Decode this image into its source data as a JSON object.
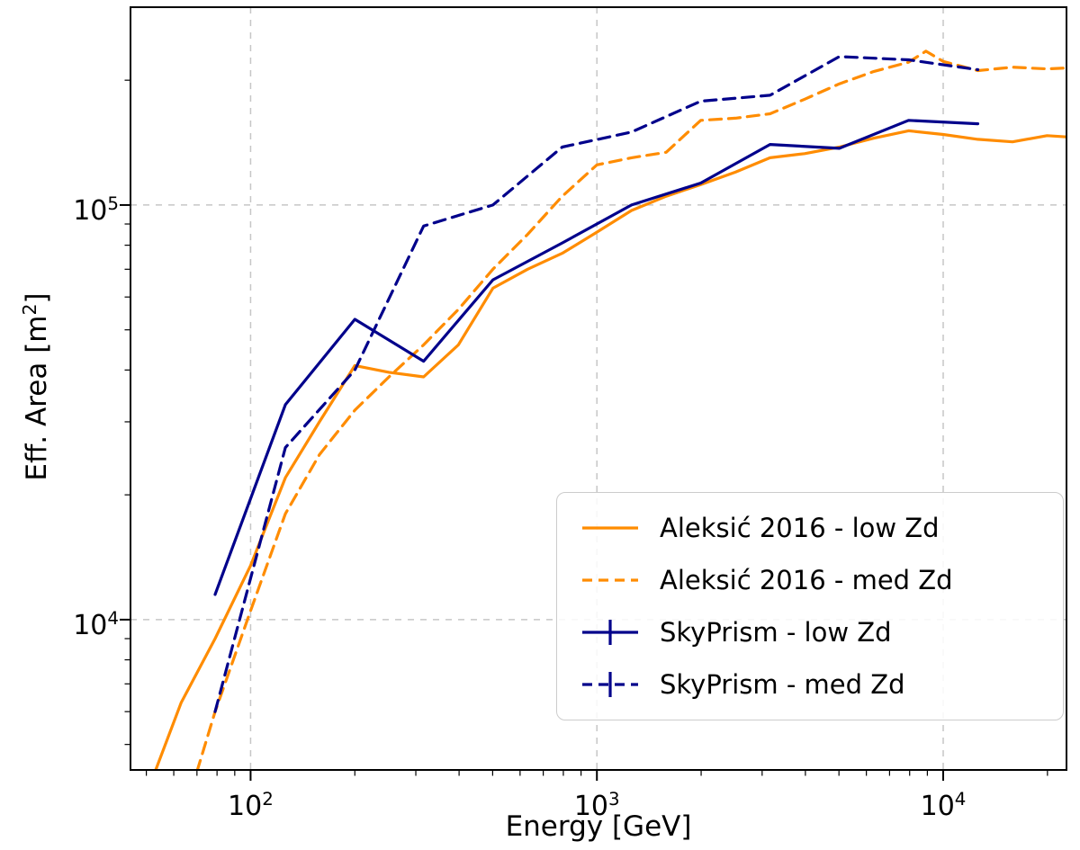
{
  "chart_data": {
    "type": "line",
    "title": "",
    "xlabel": "Energy [GeV]",
    "ylabel": "Eff. Area [m²]",
    "x_scale": "log",
    "y_scale": "log",
    "xlim": [
      45,
      22700
    ],
    "ylim": [
      4340,
      300000
    ],
    "grid": true,
    "grid_style": "dashed",
    "legend_position": "lower right",
    "x_ticks": [
      {
        "value": 100,
        "label": "10²"
      },
      {
        "value": 1000,
        "label": "10³"
      },
      {
        "value": 10000,
        "label": "10⁴"
      }
    ],
    "y_ticks": [
      {
        "value": 10000,
        "label": "10⁴"
      },
      {
        "value": 100000,
        "label": "10⁵"
      }
    ],
    "colors": {
      "aleksic_orange": "#ff8c00",
      "skyprism_navy": "#00008b",
      "grid": "#c6c6c6",
      "frame": "#000000"
    },
    "series": [
      {
        "name": "Aleksić 2016 - low Zd",
        "color": "#ff8c00",
        "style": "solid",
        "errorbar_key": false,
        "x": [
          53,
          63,
          79,
          100,
          126,
          158,
          200,
          251,
          316,
          398,
          501,
          631,
          794,
          1000,
          1259,
          1585,
          1995,
          2512,
          3162,
          3981,
          5012,
          6310,
          7943,
          10000,
          12589,
          15849,
          19953,
          22700
        ],
        "y": [
          4300,
          6300,
          9000,
          13500,
          22000,
          30000,
          41000,
          39500,
          38500,
          46000,
          63000,
          70000,
          76500,
          86000,
          97000,
          105000,
          112000,
          120000,
          130000,
          133000,
          138000,
          145000,
          151000,
          148000,
          144000,
          142000,
          147000,
          146000
        ]
      },
      {
        "name": "Aleksić 2016 - med Zd",
        "color": "#ff8c00",
        "style": "dashed",
        "errorbar_key": false,
        "x": [
          70,
          79,
          100,
          126,
          158,
          200,
          251,
          316,
          398,
          501,
          631,
          794,
          1000,
          1259,
          1585,
          1995,
          2512,
          3162,
          3981,
          5012,
          6310,
          7943,
          8913,
          10000,
          12589,
          15849,
          19953,
          22700
        ],
        "y": [
          4300,
          6000,
          10500,
          18000,
          25000,
          32000,
          38500,
          46000,
          56000,
          70000,
          85000,
          105000,
          125000,
          130000,
          134000,
          160000,
          162000,
          166000,
          180000,
          196000,
          210000,
          221000,
          235000,
          222000,
          211000,
          215000,
          213000,
          214000
        ]
      },
      {
        "name": "SkyPrism - low Zd",
        "color": "#00008b",
        "style": "solid",
        "errorbar_key": true,
        "x": [
          79,
          126,
          200,
          316,
          501,
          794,
          1259,
          1995,
          3162,
          5012,
          7943,
          12589
        ],
        "y": [
          11500,
          33000,
          53000,
          42000,
          66000,
          81000,
          100000,
          113000,
          140000,
          137000,
          160000,
          157000
        ]
      },
      {
        "name": "SkyPrism - med Zd",
        "color": "#00008b",
        "style": "dashed",
        "errorbar_key": true,
        "x": [
          79,
          126,
          200,
          316,
          501,
          794,
          1259,
          1995,
          3162,
          5012,
          7943,
          12589
        ],
        "y": [
          6000,
          26000,
          40000,
          89000,
          100000,
          138000,
          150000,
          178000,
          184000,
          228000,
          224000,
          212000
        ]
      }
    ]
  }
}
